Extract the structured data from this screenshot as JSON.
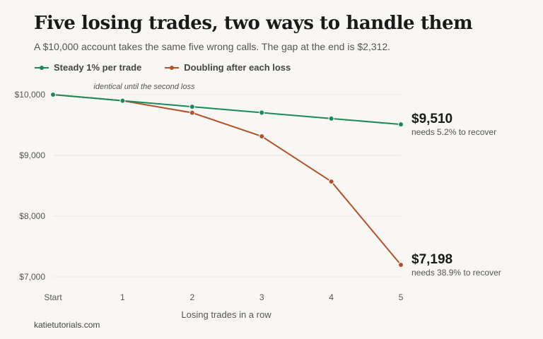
{
  "title": "Five losing trades, two ways to handle them",
  "subtitle": "A $10,000 account takes the same five wrong calls. The gap at the end is $2,312.",
  "source": "katietutorials.com",
  "chart_data": {
    "type": "line",
    "categories": [
      "Start",
      "1",
      "2",
      "3",
      "4",
      "5"
    ],
    "xlabel": "Losing trades in a row",
    "ylabel": "",
    "ylim": [
      7000,
      10000
    ],
    "yticks": [
      10000,
      9000,
      8000,
      7000
    ],
    "ytick_labels": [
      "$10,000",
      "$9,000",
      "$8,000",
      "$7,000"
    ],
    "grid": "horizontal",
    "legend_position": "top-left",
    "series": [
      {
        "name": "Steady 1% per trade",
        "color": "#1b8a5a",
        "values": [
          10000,
          9900,
          9801,
          9703,
          9606,
          9510
        ],
        "end_label": "$9,510",
        "end_note": "needs 5.2% to recover"
      },
      {
        "name": "Doubling after each loss",
        "color": "#b5512a",
        "values": [
          10000,
          9900,
          9702,
          9314,
          8569,
          7198
        ],
        "end_label": "$7,198",
        "end_note": "needs 38.9% to recover"
      }
    ],
    "annotations": [
      {
        "text": "identical until the second loss",
        "x": "1",
        "y": 10000
      }
    ]
  }
}
